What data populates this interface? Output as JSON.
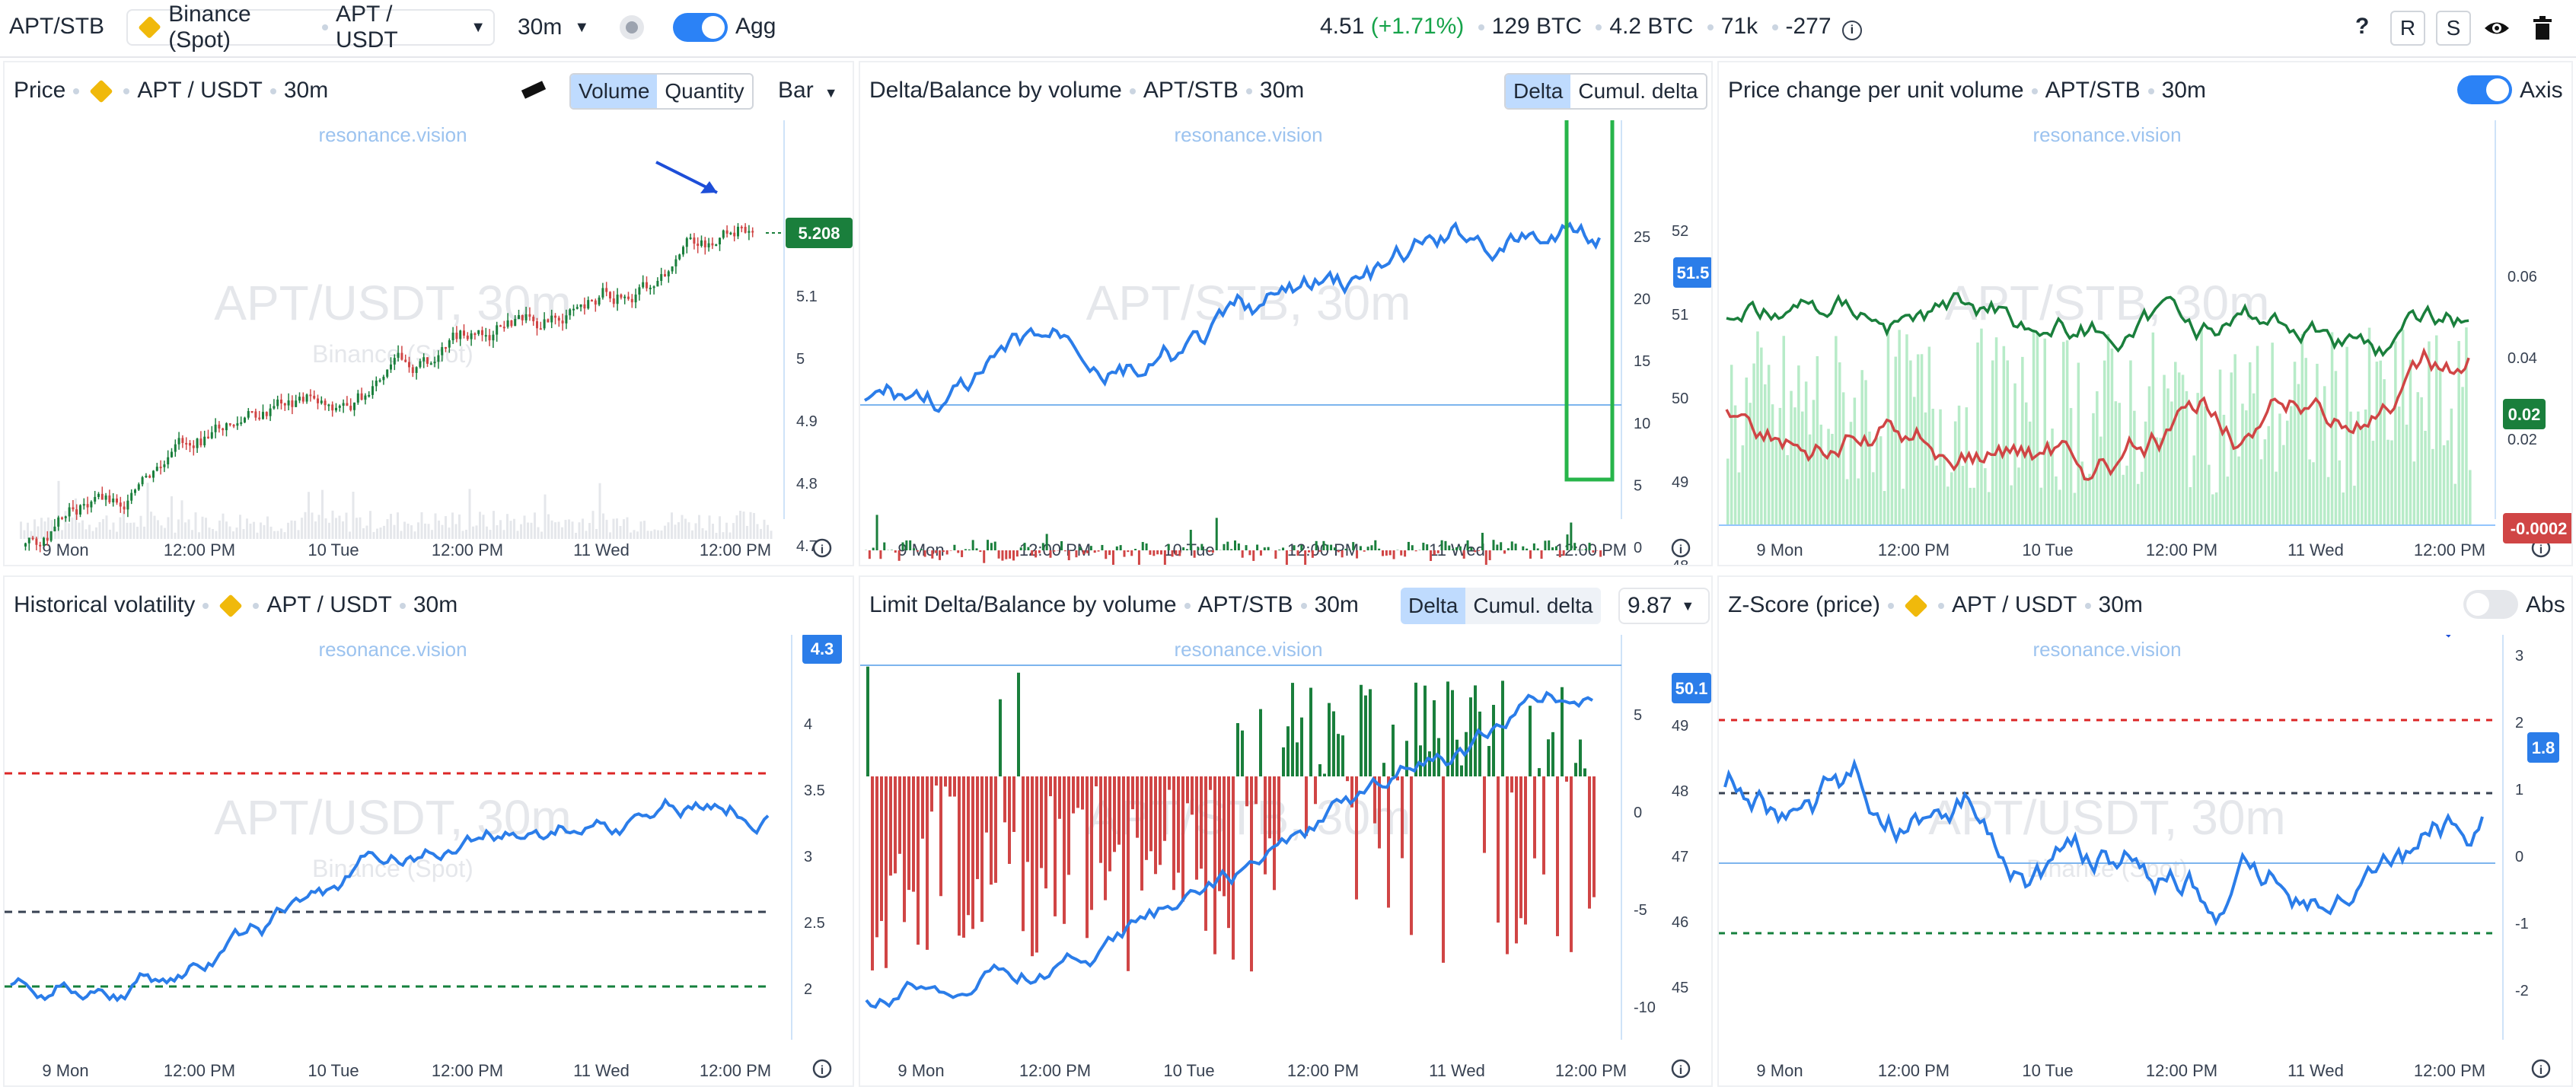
{
  "topbar": {
    "pair": "APT/STB",
    "exchange": "Binance (Spot)",
    "symbol": "APT / USDT",
    "interval": "30m",
    "agg": "Agg",
    "price": "4.51",
    "change": "(+1.71%)",
    "btc1": "129 BTC",
    "btc2": "4.2 BTC",
    "count": "71k",
    "delta": "-277",
    "help": "?",
    "r": "R",
    "s": "S"
  },
  "watermark": {
    "site": "resonance.vision",
    "apt_usdt": "APT/USDT, 30m",
    "apt_stb": "APT/STB, 30m",
    "exchange": "Binance (Spot)"
  },
  "panels": {
    "price": {
      "title": "Price",
      "symbol": "APT / USDT",
      "interval": "30m",
      "volume": "Volume",
      "quantity": "Quantity",
      "bar": "Bar",
      "last": "5.208",
      "yticks": [
        "5.2",
        "5.1",
        "5",
        "4.9",
        "4.8",
        "4.7"
      ],
      "xticks": [
        "9 Mon",
        "12:00 PM",
        "10 Tue",
        "12:00 PM",
        "11 Wed",
        "12:00 PM"
      ]
    },
    "delta": {
      "title": "Delta/Balance by volume",
      "symbol": "APT/STB",
      "interval": "30m",
      "tab1": "Delta",
      "tab2": "Cumul. delta",
      "last": "51.5",
      "yticks_left": [
        "25",
        "20",
        "15",
        "10",
        "5",
        "0"
      ],
      "yticks_right": [
        "52",
        "51",
        "50",
        "49",
        "48"
      ],
      "xticks": [
        "9 Mon",
        "12:00 PM",
        "10 Tue",
        "12:00 PM",
        "11 Wed",
        "12:00 PM"
      ]
    },
    "pcpuv": {
      "title": "Price change per unit volume",
      "symbol": "APT/STB",
      "interval": "30m",
      "axis": "Axis",
      "last1": "0.02",
      "last2": "-0.0002",
      "yticks": [
        "0.06",
        "0.04",
        "0.02"
      ],
      "xticks": [
        "9 Mon",
        "12:00 PM",
        "10 Tue",
        "12:00 PM",
        "11 Wed",
        "12:00 PM"
      ]
    },
    "hv": {
      "title": "Historical volatility",
      "symbol": "APT / USDT",
      "interval": "30m",
      "last": "4.3",
      "yticks": [
        "4",
        "3.5",
        "3",
        "2.5",
        "2"
      ],
      "xticks": [
        "9 Mon",
        "12:00 PM",
        "10 Tue",
        "12:00 PM",
        "11 Wed",
        "12:00 PM"
      ]
    },
    "limit": {
      "title": "Limit Delta/Balance by volume",
      "symbol": "APT/STB",
      "interval": "30m",
      "tab1": "Delta",
      "tab2": "Cumul. delta",
      "value": "9.87",
      "last": "50.1",
      "yticks_left": [
        "5",
        "0",
        "-5",
        "-10"
      ],
      "yticks_right": [
        "49",
        "48",
        "47",
        "46",
        "45"
      ],
      "xticks": [
        "9 Mon",
        "12:00 PM",
        "10 Tue",
        "12:00 PM",
        "11 Wed",
        "12:00 PM"
      ]
    },
    "zscore": {
      "title": "Z-Score (price)",
      "symbol": "APT / USDT",
      "interval": "30m",
      "abs": "Abs",
      "last": "1.8",
      "yticks": [
        "3",
        "2",
        "1",
        "0",
        "-1",
        "-2"
      ],
      "xticks": [
        "9 Mon",
        "12:00 PM",
        "10 Tue",
        "12:00 PM",
        "11 Wed",
        "12:00 PM"
      ]
    }
  },
  "colors": {
    "blue": "#2b7de9",
    "green": "#1a7f3c",
    "red": "#d04545",
    "light_green": "#b7ebc8"
  }
}
